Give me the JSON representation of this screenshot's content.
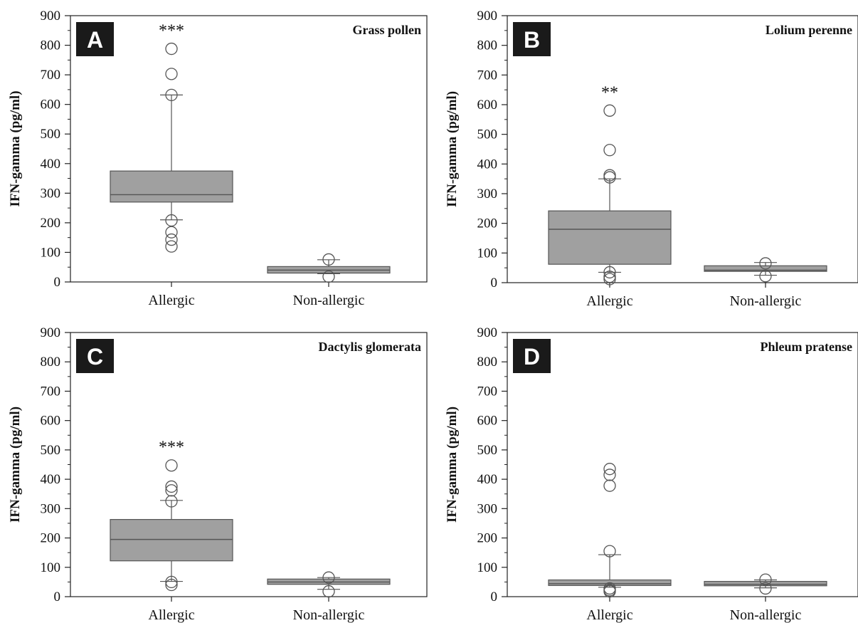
{
  "chart_data": [
    {
      "type": "box",
      "letter": "A",
      "title": "Grass pollen",
      "xlabel": "",
      "ylabel": "IFN-gamma (pg/ml)",
      "ylim": [
        0,
        900
      ],
      "yticks": [
        0,
        100,
        200,
        300,
        400,
        500,
        600,
        700,
        800,
        900
      ],
      "categories": [
        "Allergic",
        "Non-allergic"
      ],
      "boxes": [
        {
          "category": "Allergic",
          "whisker_low": 210,
          "q1": 270,
          "median": 295,
          "q3": 375,
          "whisker_high": 632,
          "outliers": [
            788,
            703,
            632,
            208,
            168,
            143,
            120
          ]
        },
        {
          "category": "Non-allergic",
          "whisker_low": 28,
          "q1": 30,
          "median": 40,
          "q3": 52,
          "whisker_high": 75,
          "outliers": [
            76,
            18
          ]
        }
      ],
      "significance": "***"
    },
    {
      "type": "box",
      "letter": "B",
      "title": "Lolium perenne",
      "xlabel": "",
      "ylabel": "IFN-gamma (pg/ml)",
      "ylim": [
        0,
        900
      ],
      "yticks": [
        0,
        100,
        200,
        300,
        400,
        500,
        600,
        700,
        800,
        900
      ],
      "categories": [
        "Allergic",
        "Non-allergic"
      ],
      "boxes": [
        {
          "category": "Allergic",
          "whisker_low": 35,
          "q1": 62,
          "median": 180,
          "q3": 242,
          "whisker_high": 350,
          "outliers": [
            580,
            447,
            362,
            355,
            35,
            20,
            12
          ]
        },
        {
          "category": "Non-allergic",
          "whisker_low": 25,
          "q1": 38,
          "median": 42,
          "q3": 57,
          "whisker_high": 68,
          "outliers": [
            65,
            22
          ]
        }
      ],
      "significance": "**"
    },
    {
      "type": "box",
      "letter": "C",
      "title": "Dactylis glomerata",
      "xlabel": "",
      "ylabel": "IFN-gamma (pg/ml)",
      "ylim": [
        0,
        900
      ],
      "yticks": [
        0,
        100,
        200,
        300,
        400,
        500,
        600,
        700,
        800,
        900
      ],
      "categories": [
        "Allergic",
        "Non-allergic"
      ],
      "boxes": [
        {
          "category": "Allergic",
          "whisker_low": 52,
          "q1": 122,
          "median": 195,
          "q3": 263,
          "whisker_high": 328,
          "outliers": [
            447,
            375,
            362,
            325,
            50,
            40
          ]
        },
        {
          "category": "Non-allergic",
          "whisker_low": 25,
          "q1": 42,
          "median": 50,
          "q3": 60,
          "whisker_high": 65,
          "outliers": [
            65,
            18
          ]
        }
      ],
      "significance": "***"
    },
    {
      "type": "box",
      "letter": "D",
      "title": "Phleum pratense",
      "xlabel": "",
      "ylabel": "IFN-gamma (pg/ml)",
      "ylim": [
        0,
        900
      ],
      "yticks": [
        0,
        100,
        200,
        300,
        400,
        500,
        600,
        700,
        800,
        900
      ],
      "categories": [
        "Allergic",
        "Non-allergic"
      ],
      "boxes": [
        {
          "category": "Allergic",
          "whisker_low": 32,
          "q1": 38,
          "median": 44,
          "q3": 57,
          "whisker_high": 143,
          "outliers": [
            435,
            415,
            378,
            155,
            28,
            22,
            18
          ]
        },
        {
          "category": "Non-allergic",
          "whisker_low": 30,
          "q1": 37,
          "median": 42,
          "q3": 52,
          "whisker_high": 57,
          "outliers": [
            58,
            28
          ]
        }
      ],
      "significance": ""
    }
  ],
  "colors": {
    "box_fill": "#a0a0a0",
    "line": "#555555",
    "axis": "#222222",
    "letter_bg": "#1a1a1a",
    "letter_text": "#ffffff"
  }
}
